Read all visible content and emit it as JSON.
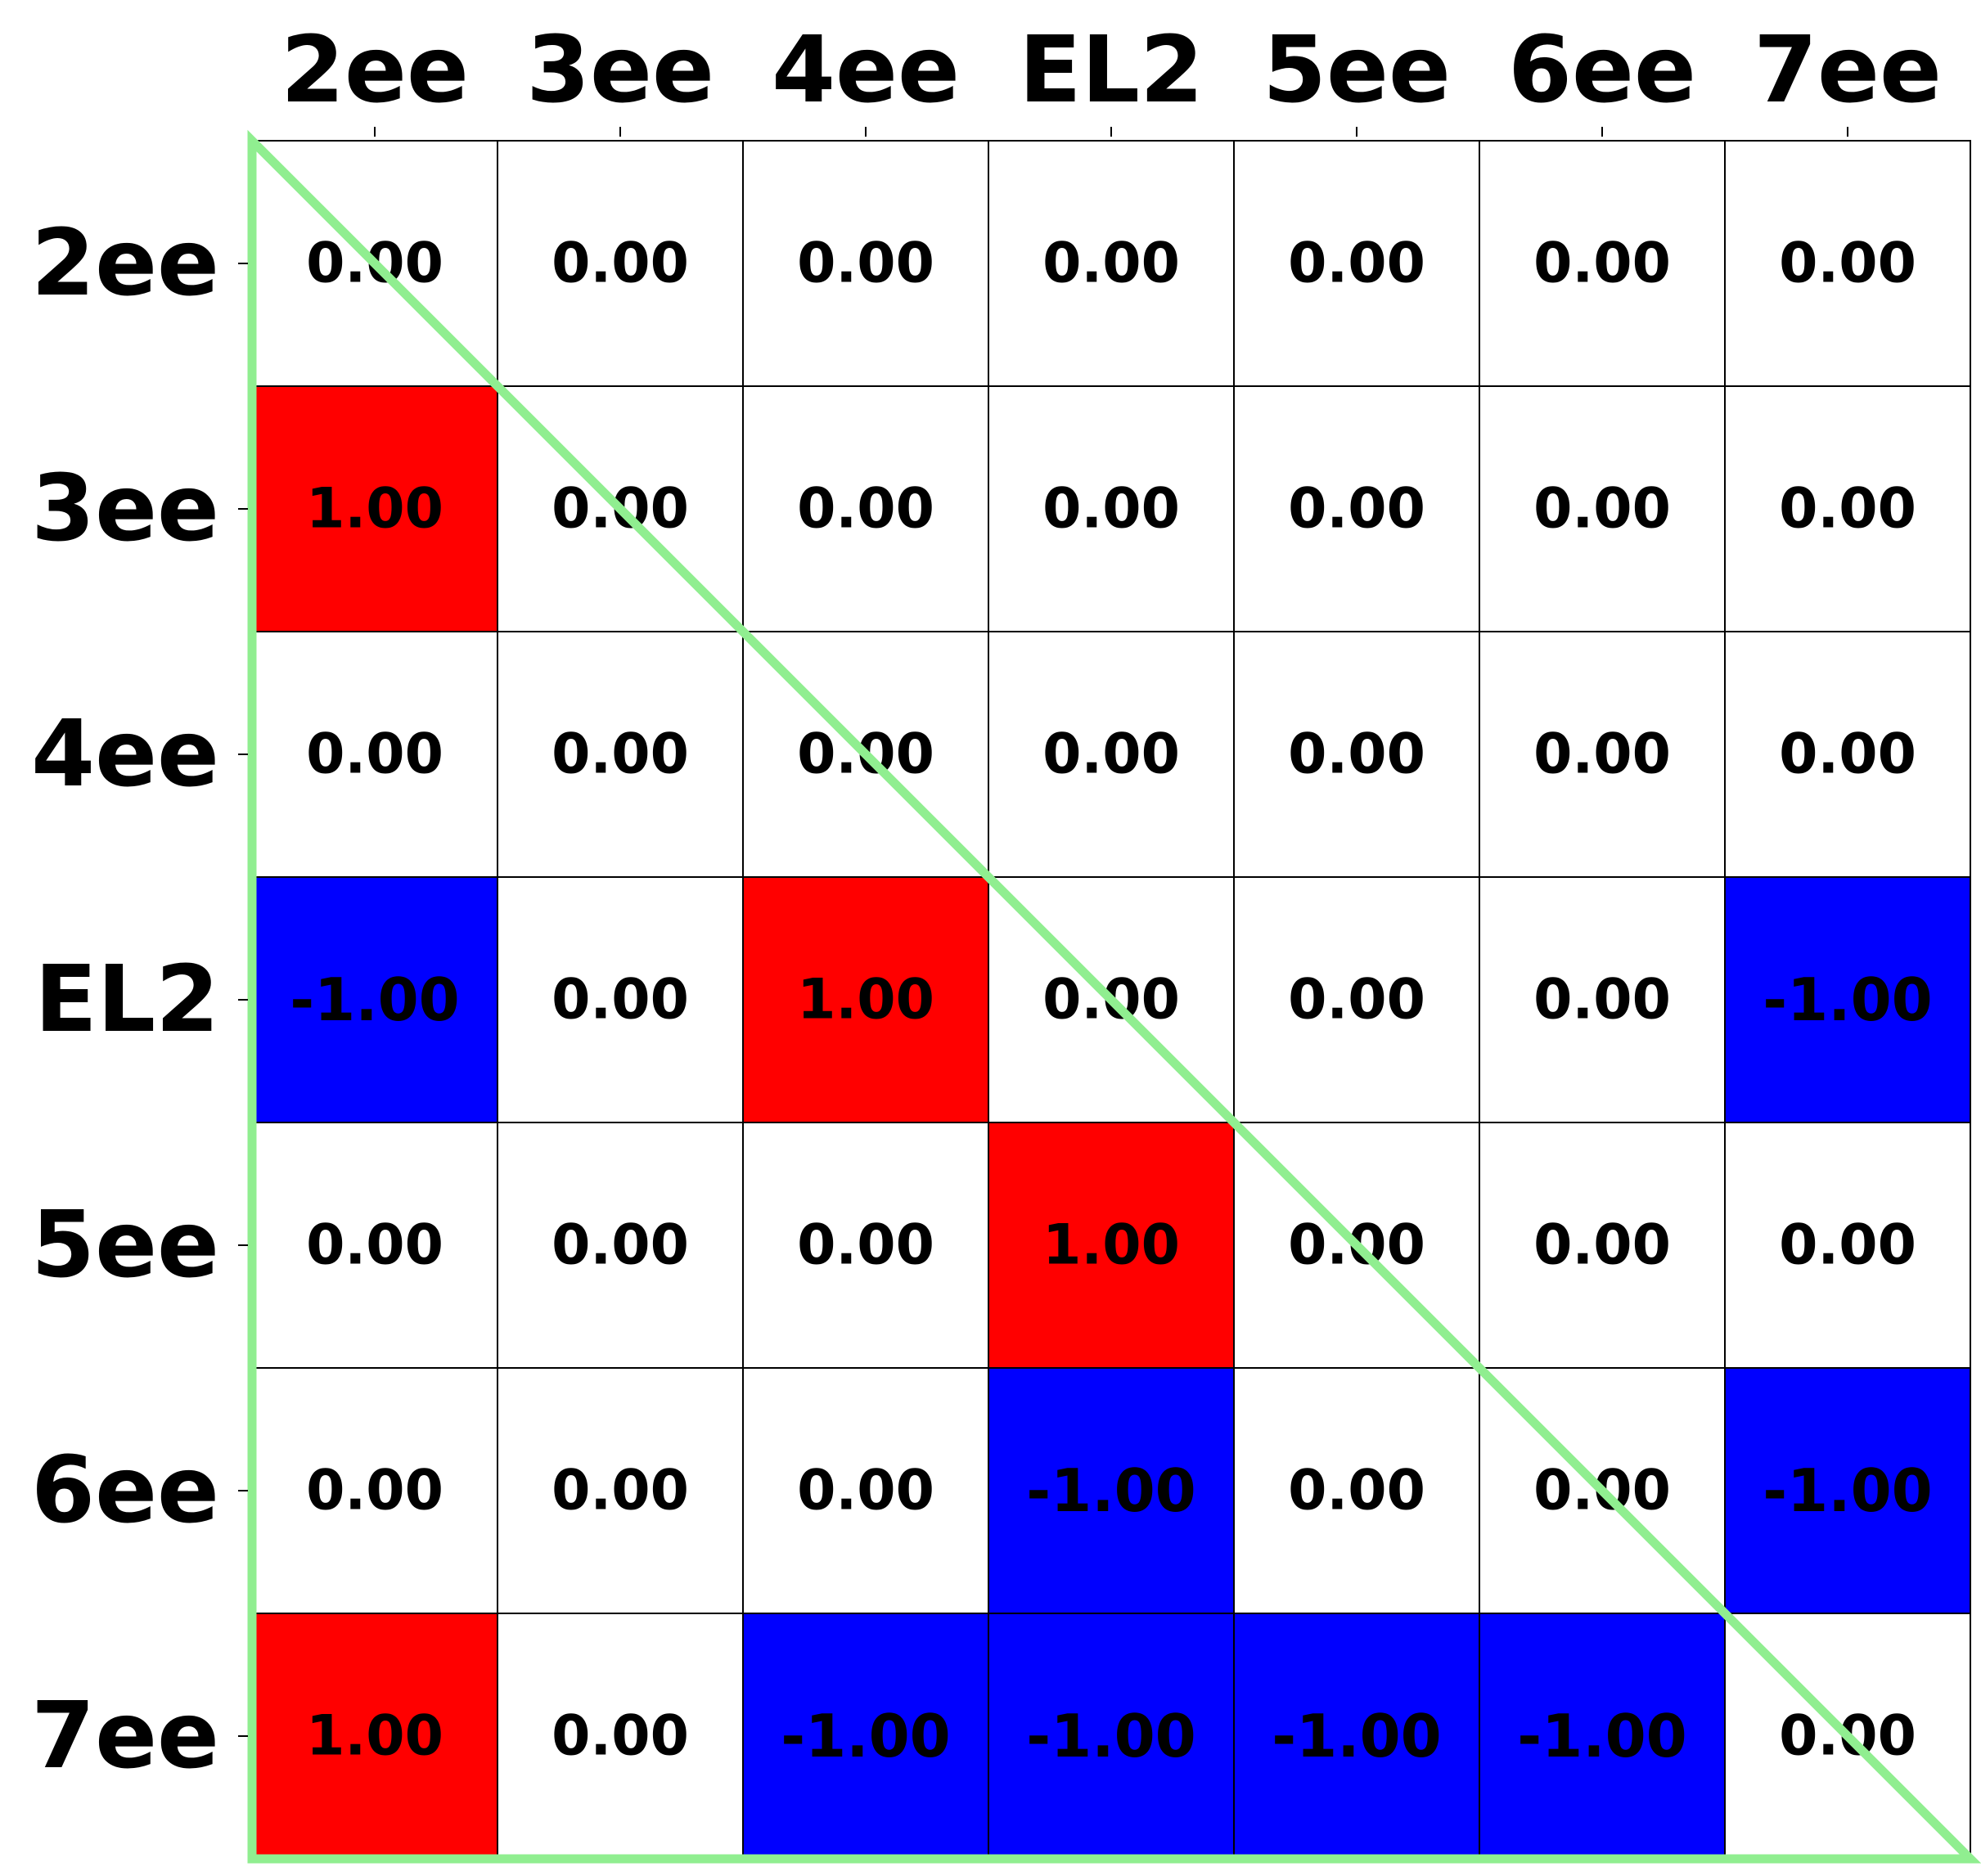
{
  "chart_data": {
    "type": "heatmap",
    "x_labels": [
      "2ee",
      "3ee",
      "4ee",
      "EL2",
      "5ee",
      "6ee",
      "7ee"
    ],
    "y_labels": [
      "2ee",
      "3ee",
      "4ee",
      "EL2",
      "5ee",
      "6ee",
      "7ee"
    ],
    "values": [
      [
        0,
        0,
        0,
        0,
        0,
        0,
        0
      ],
      [
        1,
        0,
        0,
        0,
        0,
        0,
        0
      ],
      [
        0,
        0,
        0,
        0,
        0,
        0,
        0
      ],
      [
        -1,
        0,
        1,
        0,
        0,
        0,
        -1
      ],
      [
        0,
        0,
        0,
        1,
        0,
        0,
        0
      ],
      [
        0,
        0,
        0,
        -1,
        0,
        0,
        -1
      ],
      [
        1,
        0,
        -1,
        -1,
        -1,
        -1,
        0
      ]
    ],
    "value_format": "0.00",
    "colors": {
      "positive": "#ff0000",
      "negative": "#0000ff",
      "zero": "#ffffff",
      "grid_line": "#000000",
      "triangle_outline": "#90ee90"
    },
    "x_axis_position": "top",
    "grid": true,
    "overlay": "lower-triangle outline"
  }
}
